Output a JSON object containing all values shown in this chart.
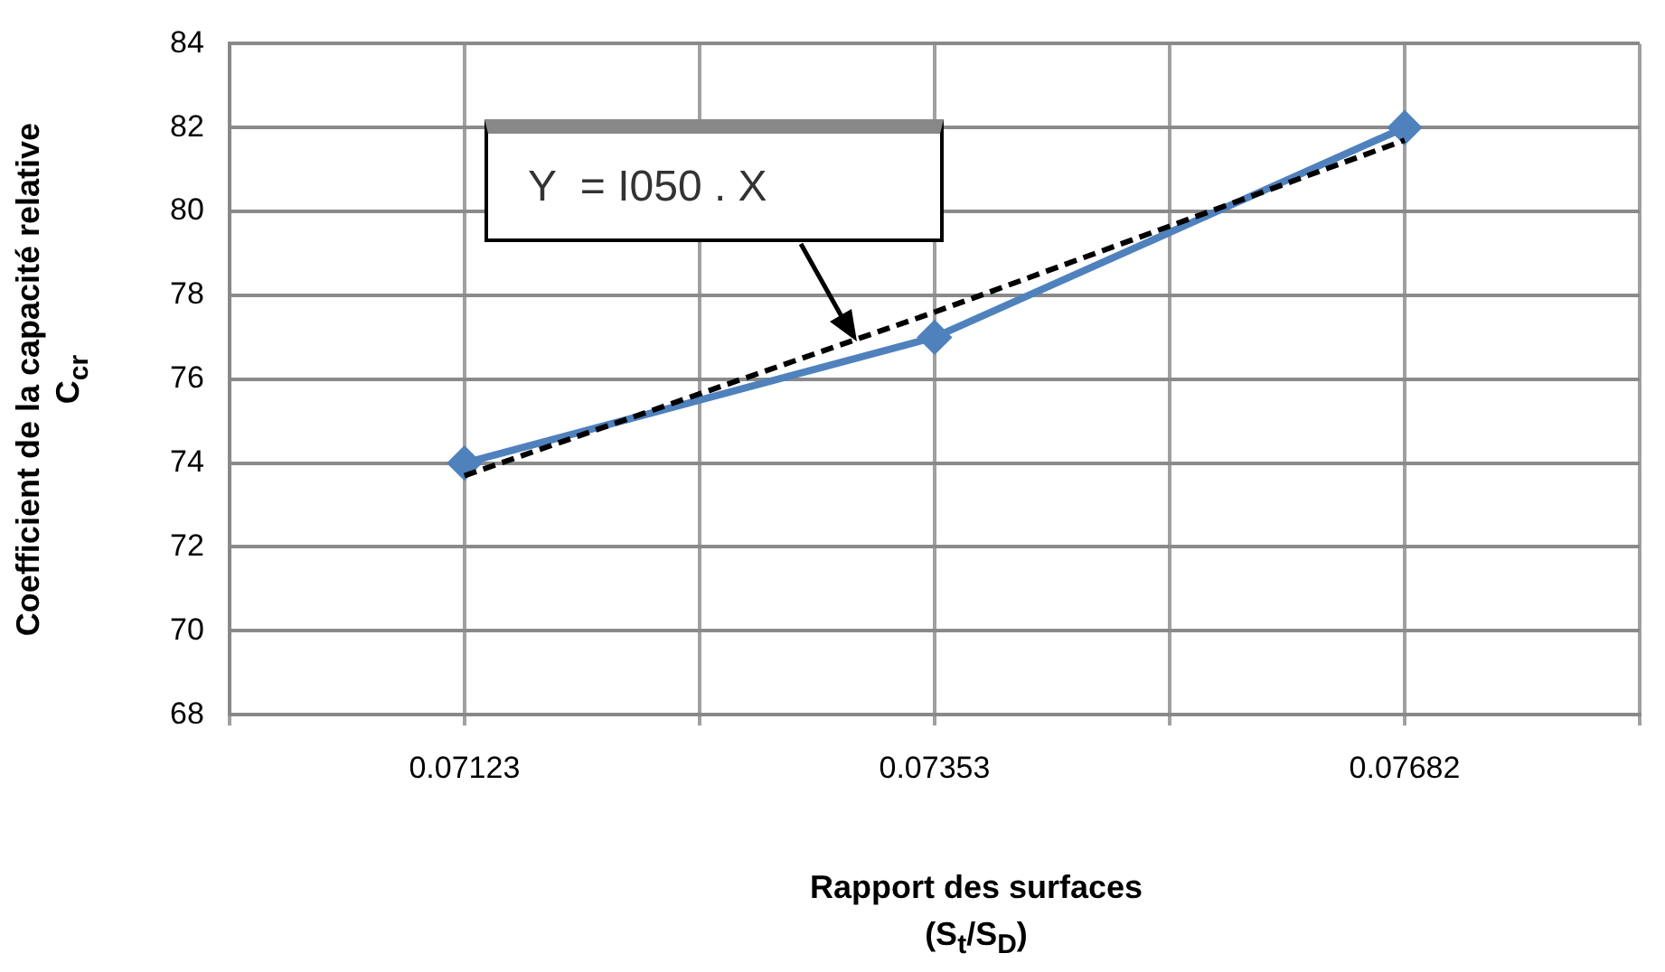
{
  "chart_data": {
    "type": "line",
    "xlabel": "Rapport des surfaces\n(S$_{t}$/S$_{D}$)",
    "ylabel": "Coefficient de la capacité relative\nC$_{cr}$",
    "categories": [
      "0.07123",
      "0.07353",
      "0.07682"
    ],
    "series": [
      {
        "color": "#4f81bd",
        "values": [
          74,
          77,
          82
        ],
        "marker": "diamond",
        "line_style": "solid"
      },
      {
        "type": "line",
        "color": "#000000",
        "values": [
          73.7,
          77.6,
          81.7
        ],
        "marker": "none",
        "line_style": "dashed"
      }
    ],
    "ylim": [
      68,
      84
    ],
    "yticks": [
      68,
      70,
      72,
      74,
      76,
      78,
      80,
      82,
      84
    ],
    "grid": true,
    "legend": false,
    "annotations": [
      "Y  = I050 . X"
    ]
  }
}
